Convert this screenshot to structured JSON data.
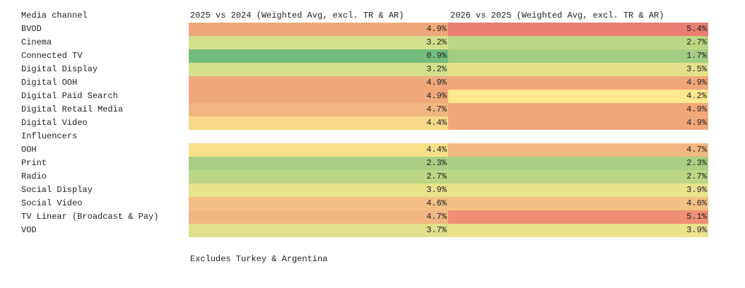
{
  "table": {
    "header": [
      "Media channel",
      "2025 vs 2024 (Weighted Avg, excl. TR & AR)",
      "2026 vs 2025 (Weighted Avg, excl. TR & AR)"
    ],
    "rows": [
      [
        "BVOD",
        "4.9%",
        "5.4%"
      ],
      [
        "Cinema",
        "3.2%",
        "2.7%"
      ],
      [
        "Connected TV",
        "0.9%",
        "1.7%"
      ],
      [
        "Digital Display",
        "3.2%",
        "3.5%"
      ],
      [
        "Digital OOH",
        "4.9%",
        "4.9%"
      ],
      [
        "Digital Paid Search",
        "4.9%",
        "4.2%"
      ],
      [
        "Digital Retail Media",
        "4.7%",
        "4.9%"
      ],
      [
        "Digital Video",
        "4.4%",
        "4.9%"
      ],
      [
        "Influencers",
        null,
        null
      ],
      [
        "OOH",
        "4.4%",
        "4.7%"
      ],
      [
        "Print",
        "2.3%",
        "2.3%"
      ],
      [
        "Radio",
        "2.7%",
        "2.7%"
      ],
      [
        "Social Display",
        "3.9%",
        "3.9%"
      ],
      [
        "Social Video",
        "4.6%",
        "4.6%"
      ],
      [
        "TV Linear (Broadcast & Pay)",
        "4.7%",
        "5.1%"
      ],
      [
        "VOD",
        "3.7%",
        "3.9%"
      ]
    ],
    "cell_colors": [
      [
        "#f0a87a",
        "#ea7d72"
      ],
      [
        "#d3df8a",
        "#bdd685"
      ],
      [
        "#73bc7c",
        "#a3cd84"
      ],
      [
        "#d3df8a",
        "#e4e18b"
      ],
      [
        "#f0a87a",
        "#f0a87a"
      ],
      [
        "#f0a87a",
        "#fbe88f"
      ],
      [
        "#f1b781",
        "#f0a87a"
      ],
      [
        "#f8d98a",
        "#f0a87a"
      ],
      [
        null,
        null
      ],
      [
        "#f8e08b",
        "#f1b781"
      ],
      [
        "#a8cf83",
        "#a8cf83"
      ],
      [
        "#bdd685",
        "#bdd685"
      ],
      [
        "#e9e38c",
        "#e9e38c"
      ],
      [
        "#f3c184",
        "#f3c184"
      ],
      [
        "#f1b781",
        "#ee8e76"
      ],
      [
        "#dfe08b",
        "#e9e38c"
      ]
    ],
    "footnote": "Excludes Turkey & Argentina"
  }
}
